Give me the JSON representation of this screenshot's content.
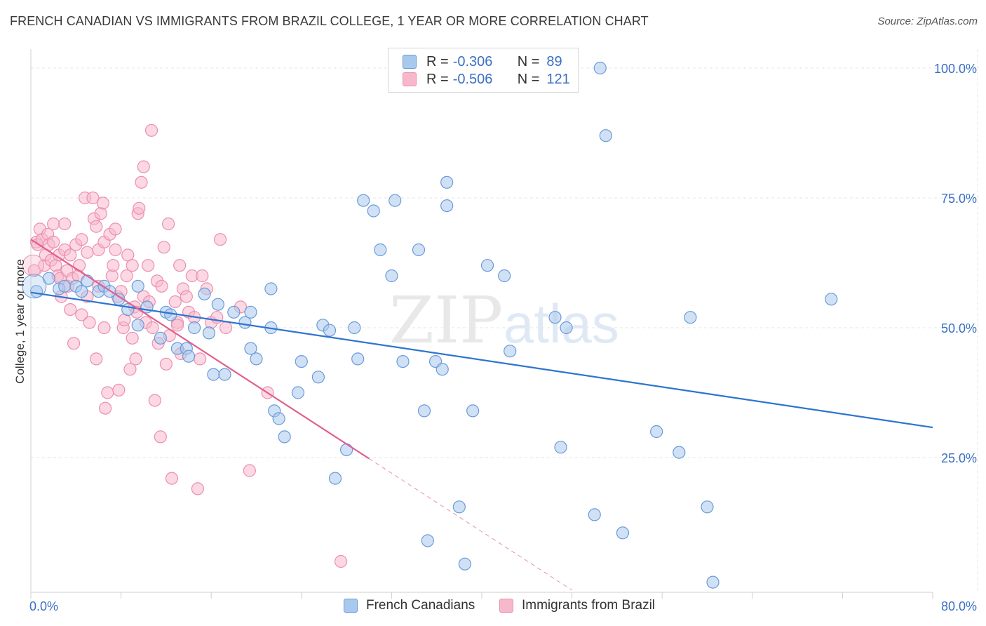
{
  "header": {
    "title": "FRENCH CANADIAN VS IMMIGRANTS FROM BRAZIL COLLEGE, 1 YEAR OR MORE CORRELATION CHART",
    "source": "Source: ZipAtlas.com"
  },
  "legend": {
    "r_label": "R =",
    "n_label": "N =",
    "rows": [
      {
        "r": "-0.306",
        "n": "89"
      },
      {
        "r": "-0.506",
        "n": "121"
      }
    ]
  },
  "watermark": {
    "zip": "ZIP",
    "atlas": "atlas"
  },
  "colors": {
    "blue_fill": "#a9c8ee",
    "blue_stroke": "#6a9bd9",
    "blue_line": "#2e74d0",
    "pink_fill": "#f7b8cc",
    "pink_stroke": "#ec8fae",
    "pink_line": "#e0608f",
    "value_text": "#3a6fc4",
    "grid": "#e4e4e4"
  },
  "chart_data": {
    "type": "scatter",
    "title": "FRENCH CANADIAN VS IMMIGRANTS FROM BRAZIL COLLEGE, 1 YEAR OR MORE CORRELATION CHART",
    "xlabel": "",
    "ylabel": "College, 1 year or more",
    "xlim": [
      0,
      80
    ],
    "ylim": [
      0,
      102
    ],
    "x_tick_labels": [
      "0.0%",
      "80.0%"
    ],
    "y_ticks": [
      25,
      50,
      75,
      100
    ],
    "y_tick_labels": [
      "25.0%",
      "50.0%",
      "75.0%",
      "100.0%"
    ],
    "grid": true,
    "legend_position": "bottom",
    "series": [
      {
        "name": "French Canadians",
        "color": "blue",
        "r": -0.306,
        "n": 89,
        "trend": {
          "x0": 0,
          "y0": 56.8,
          "x1": 80,
          "y1": 30.8
        },
        "points": [
          [
            0.5,
            57
          ],
          [
            1.6,
            59.5
          ],
          [
            2.5,
            57.5
          ],
          [
            3,
            58
          ],
          [
            4,
            58
          ],
          [
            4.5,
            57
          ],
          [
            5,
            59
          ],
          [
            6,
            57
          ],
          [
            6.5,
            58
          ],
          [
            7,
            57
          ],
          [
            7.8,
            55.5
          ],
          [
            8.6,
            53.5
          ],
          [
            9.5,
            58
          ],
          [
            9.5,
            50.5
          ],
          [
            10.3,
            54
          ],
          [
            11.5,
            48
          ],
          [
            12,
            53
          ],
          [
            12.4,
            52.5
          ],
          [
            13,
            46
          ],
          [
            13.8,
            46
          ],
          [
            14,
            44.5
          ],
          [
            14.5,
            50
          ],
          [
            15.4,
            56.5
          ],
          [
            15.8,
            49
          ],
          [
            16.2,
            41
          ],
          [
            16.6,
            54.5
          ],
          [
            17.2,
            41
          ],
          [
            18,
            53
          ],
          [
            19,
            51
          ],
          [
            19.5,
            53
          ],
          [
            19.5,
            46
          ],
          [
            20,
            44
          ],
          [
            21.3,
            50
          ],
          [
            21.3,
            57.5
          ],
          [
            21.6,
            34
          ],
          [
            22,
            32.5
          ],
          [
            22.5,
            29
          ],
          [
            23.7,
            37.5
          ],
          [
            24,
            43.5
          ],
          [
            25.5,
            40.5
          ],
          [
            25.9,
            50.5
          ],
          [
            26.5,
            49.5
          ],
          [
            27,
            21
          ],
          [
            28,
            26.5
          ],
          [
            28.7,
            50
          ],
          [
            29,
            44
          ],
          [
            29.5,
            74.5
          ],
          [
            30.4,
            72.5
          ],
          [
            31,
            65
          ],
          [
            32,
            60
          ],
          [
            32.3,
            74.5
          ],
          [
            33,
            43.5
          ],
          [
            34.4,
            65
          ],
          [
            34.9,
            34
          ],
          [
            35.2,
            9
          ],
          [
            35.9,
            43.5
          ],
          [
            36.5,
            42
          ],
          [
            36.9,
            78
          ],
          [
            36.9,
            73.5
          ],
          [
            38,
            15.5
          ],
          [
            38.5,
            4.5
          ],
          [
            39.2,
            34
          ],
          [
            40.5,
            62
          ],
          [
            42,
            60
          ],
          [
            42.5,
            45.5
          ],
          [
            46.5,
            52
          ],
          [
            47,
            27
          ],
          [
            47.5,
            50
          ],
          [
            50,
            14
          ],
          [
            50.5,
            100
          ],
          [
            51,
            87
          ],
          [
            52.5,
            10.5
          ],
          [
            55.5,
            30
          ],
          [
            57.5,
            26
          ],
          [
            58.5,
            52
          ],
          [
            60,
            15.5
          ],
          [
            60.5,
            1
          ],
          [
            71,
            55.5
          ]
        ]
      },
      {
        "name": "Immigrants from Brazil",
        "color": "pink",
        "r": -0.506,
        "n": 121,
        "trend": {
          "x0": 0,
          "y0": 67,
          "x1": 30,
          "y1": 24.8,
          "dash_to_x": 48
        },
        "points": [
          [
            0.3,
            61
          ],
          [
            0.5,
            66.5
          ],
          [
            0.6,
            66
          ],
          [
            0.8,
            69
          ],
          [
            1,
            67
          ],
          [
            1.2,
            62
          ],
          [
            1.3,
            64
          ],
          [
            1.5,
            68
          ],
          [
            1.6,
            66
          ],
          [
            1.8,
            63
          ],
          [
            2,
            70
          ],
          [
            2,
            66.5
          ],
          [
            2.2,
            62
          ],
          [
            2.4,
            60
          ],
          [
            2.5,
            64
          ],
          [
            2.6,
            59.5
          ],
          [
            2.7,
            56
          ],
          [
            3,
            70
          ],
          [
            3,
            65
          ],
          [
            3.2,
            61
          ],
          [
            3.3,
            58
          ],
          [
            3.5,
            64
          ],
          [
            3.5,
            53.5
          ],
          [
            3.7,
            59.5
          ],
          [
            3.8,
            47
          ],
          [
            4,
            66
          ],
          [
            4.2,
            60
          ],
          [
            4.3,
            62
          ],
          [
            4.5,
            67
          ],
          [
            4.5,
            52.5
          ],
          [
            4.8,
            75
          ],
          [
            5,
            64.5
          ],
          [
            5,
            56
          ],
          [
            5.2,
            51
          ],
          [
            5.5,
            75
          ],
          [
            5.6,
            71
          ],
          [
            5.8,
            69.5
          ],
          [
            5.8,
            44
          ],
          [
            6,
            65
          ],
          [
            6,
            58
          ],
          [
            6.2,
            72
          ],
          [
            6.4,
            74
          ],
          [
            6.5,
            66.5
          ],
          [
            6.5,
            50
          ],
          [
            6.6,
            34.5
          ],
          [
            6.8,
            37.5
          ],
          [
            7,
            68
          ],
          [
            7.2,
            60
          ],
          [
            7.3,
            62
          ],
          [
            7.5,
            69
          ],
          [
            7.5,
            65
          ],
          [
            7.7,
            56
          ],
          [
            7.8,
            38
          ],
          [
            8,
            57
          ],
          [
            8.2,
            50
          ],
          [
            8.3,
            51.5
          ],
          [
            8.5,
            60
          ],
          [
            8.6,
            64
          ],
          [
            8.8,
            42
          ],
          [
            9,
            62
          ],
          [
            9,
            48
          ],
          [
            9.2,
            54
          ],
          [
            9.3,
            44
          ],
          [
            9.4,
            53
          ],
          [
            9.5,
            72
          ],
          [
            9.6,
            73
          ],
          [
            9.8,
            78
          ],
          [
            10,
            81
          ],
          [
            10,
            56
          ],
          [
            10.2,
            51
          ],
          [
            10.4,
            62
          ],
          [
            10.5,
            55
          ],
          [
            10.7,
            88
          ],
          [
            10.8,
            50
          ],
          [
            11,
            36
          ],
          [
            11.2,
            59
          ],
          [
            11.3,
            47
          ],
          [
            11.5,
            29
          ],
          [
            11.6,
            58
          ],
          [
            11.8,
            65.5
          ],
          [
            12,
            43
          ],
          [
            12.2,
            70
          ],
          [
            12.3,
            48.5
          ],
          [
            12.5,
            21
          ],
          [
            12.8,
            55
          ],
          [
            13,
            51
          ],
          [
            13,
            50.5
          ],
          [
            13.2,
            62
          ],
          [
            13.3,
            45
          ],
          [
            13.5,
            57.5
          ],
          [
            13.8,
            56
          ],
          [
            14,
            53
          ],
          [
            14.3,
            60
          ],
          [
            14.5,
            52
          ],
          [
            14.8,
            19
          ],
          [
            15,
            44
          ],
          [
            15.2,
            60
          ],
          [
            15.6,
            57.5
          ],
          [
            16,
            51
          ],
          [
            16.5,
            52
          ],
          [
            16.8,
            67
          ],
          [
            17.3,
            50
          ],
          [
            18.6,
            54
          ],
          [
            19.4,
            22.5
          ],
          [
            21,
            37.5
          ],
          [
            27.5,
            5
          ]
        ]
      }
    ]
  },
  "bottom_legend": [
    {
      "label": "French Canadians"
    },
    {
      "label": "Immigrants from Brazil"
    }
  ]
}
